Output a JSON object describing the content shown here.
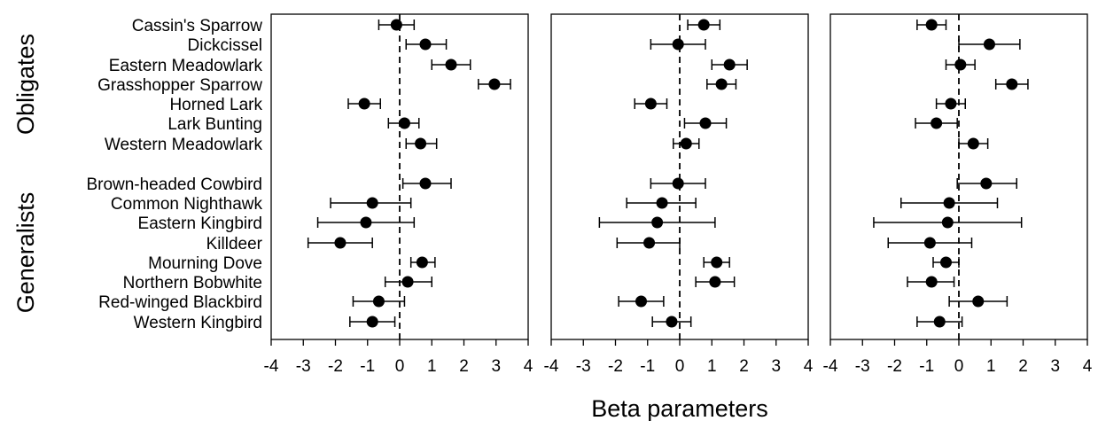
{
  "chart_data": {
    "type": "scatter",
    "subtype": "forest-plot-with-error-bars",
    "xlabel": "Beta parameters",
    "xlim": [
      -4,
      4
    ],
    "x_ticks": [
      "-4",
      "-3",
      "-2",
      "-1",
      "0",
      "1",
      "2",
      "3",
      "4"
    ],
    "reference_line": {
      "x": 0,
      "style": "dashed"
    },
    "grid": false,
    "groups": [
      {
        "label": "Obligates",
        "species": [
          "Cassin's Sparrow",
          "Dickcissel",
          "Eastern Meadowlark",
          "Grasshopper Sparrow",
          "Horned Lark",
          "Lark Bunting",
          "Western Meadowlark"
        ]
      },
      {
        "label": "Generalists",
        "species": [
          "Brown-headed Cowbird",
          "Common Nighthawk",
          "Eastern Kingbird",
          "Killdeer",
          "Mourning Dove",
          "Northern Bobwhite",
          "Red-winged Blackbird",
          "Western Kingbird"
        ]
      }
    ],
    "panels": [
      {
        "points": [
          {
            "estimate": -0.1,
            "low": -0.65,
            "high": 0.45
          },
          {
            "estimate": 0.8,
            "low": 0.2,
            "high": 1.45
          },
          {
            "estimate": 1.6,
            "low": 1.0,
            "high": 2.2
          },
          {
            "estimate": 2.95,
            "low": 2.45,
            "high": 3.45
          },
          {
            "estimate": -1.1,
            "low": -1.6,
            "high": -0.6
          },
          {
            "estimate": 0.15,
            "low": -0.35,
            "high": 0.6
          },
          {
            "estimate": 0.65,
            "low": 0.2,
            "high": 1.15
          },
          {
            "estimate": 0.8,
            "low": 0.1,
            "high": 1.6
          },
          {
            "estimate": -0.85,
            "low": -2.15,
            "high": 0.35
          },
          {
            "estimate": -1.05,
            "low": -2.55,
            "high": 0.45
          },
          {
            "estimate": -1.85,
            "low": -2.85,
            "high": -0.85
          },
          {
            "estimate": 0.7,
            "low": 0.35,
            "high": 1.1
          },
          {
            "estimate": 0.25,
            "low": -0.45,
            "high": 1.0
          },
          {
            "estimate": -0.65,
            "low": -1.45,
            "high": 0.15
          },
          {
            "estimate": -0.85,
            "low": -1.55,
            "high": -0.15
          }
        ]
      },
      {
        "points": [
          {
            "estimate": 0.75,
            "low": 0.25,
            "high": 1.25
          },
          {
            "estimate": -0.05,
            "low": -0.9,
            "high": 0.8
          },
          {
            "estimate": 1.55,
            "low": 1.0,
            "high": 2.1
          },
          {
            "estimate": 1.3,
            "low": 0.85,
            "high": 1.75
          },
          {
            "estimate": -0.9,
            "low": -1.4,
            "high": -0.4
          },
          {
            "estimate": 0.8,
            "low": 0.15,
            "high": 1.45
          },
          {
            "estimate": 0.2,
            "low": -0.2,
            "high": 0.6
          },
          {
            "estimate": -0.05,
            "low": -0.9,
            "high": 0.8
          },
          {
            "estimate": -0.55,
            "low": -1.65,
            "high": 0.5
          },
          {
            "estimate": -0.7,
            "low": -2.5,
            "high": 1.1
          },
          {
            "estimate": -0.95,
            "low": -1.95,
            "high": 0.0
          },
          {
            "estimate": 1.15,
            "low": 0.75,
            "high": 1.55
          },
          {
            "estimate": 1.1,
            "low": 0.5,
            "high": 1.7
          },
          {
            "estimate": -1.2,
            "low": -1.9,
            "high": -0.5
          },
          {
            "estimate": -0.25,
            "low": -0.85,
            "high": 0.35
          }
        ]
      },
      {
        "points": [
          {
            "estimate": -0.85,
            "low": -1.3,
            "high": -0.4
          },
          {
            "estimate": 0.95,
            "low": 0.0,
            "high": 1.9
          },
          {
            "estimate": 0.05,
            "low": -0.4,
            "high": 0.5
          },
          {
            "estimate": 1.65,
            "low": 1.15,
            "high": 2.15
          },
          {
            "estimate": -0.25,
            "low": -0.7,
            "high": 0.2
          },
          {
            "estimate": -0.7,
            "low": -1.35,
            "high": -0.05
          },
          {
            "estimate": 0.45,
            "low": 0.0,
            "high": 0.9
          },
          {
            "estimate": 0.85,
            "low": -0.05,
            "high": 1.8
          },
          {
            "estimate": -0.3,
            "low": -1.8,
            "high": 1.2
          },
          {
            "estimate": -0.35,
            "low": -2.65,
            "high": 1.95
          },
          {
            "estimate": -0.9,
            "low": -2.2,
            "high": 0.4
          },
          {
            "estimate": -0.4,
            "low": -0.8,
            "high": -0.0
          },
          {
            "estimate": -0.85,
            "low": -1.6,
            "high": -0.15
          },
          {
            "estimate": 0.6,
            "low": -0.3,
            "high": 1.5
          },
          {
            "estimate": -0.6,
            "low": -1.3,
            "high": 0.1
          }
        ]
      }
    ]
  }
}
